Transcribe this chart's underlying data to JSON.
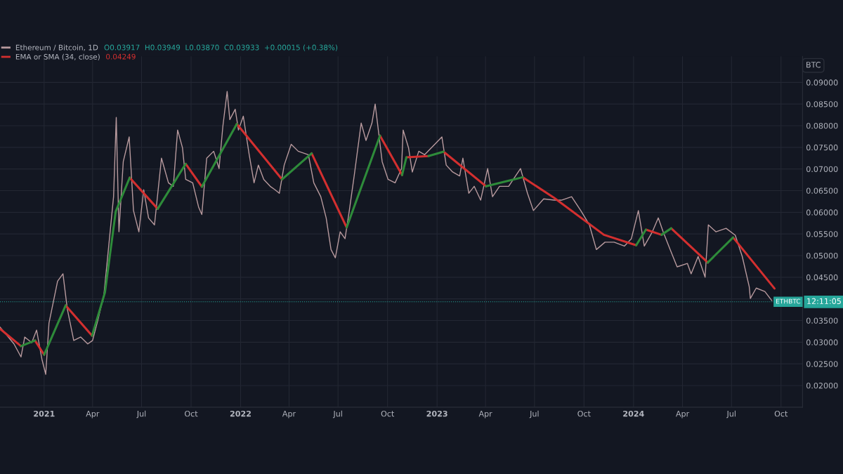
{
  "chart_data": {
    "type": "line",
    "title": null,
    "ylabel": "BTC",
    "xlim": [
      "2020-10-11",
      "2024-11-10"
    ],
    "xticks": [
      {
        "value": "2021-01-01",
        "label": "2021"
      },
      {
        "value": "2021-04-01",
        "label": "Apr"
      },
      {
        "value": "2021-07-01",
        "label": "Jul"
      },
      {
        "value": "2021-10-01",
        "label": "Oct"
      },
      {
        "value": "2022-01-01",
        "label": "2022"
      },
      {
        "value": "2022-04-01",
        "label": "Apr"
      },
      {
        "value": "2022-07-01",
        "label": "Jul"
      },
      {
        "value": "2022-10-01",
        "label": "Oct"
      },
      {
        "value": "2023-01-01",
        "label": "2023"
      },
      {
        "value": "2023-04-01",
        "label": "Apr"
      },
      {
        "value": "2023-07-01",
        "label": "Jul"
      },
      {
        "value": "2023-10-01",
        "label": "Oct"
      },
      {
        "value": "2024-01-01",
        "label": "2024"
      },
      {
        "value": "2024-04-01",
        "label": "Apr"
      },
      {
        "value": "2024-07-01",
        "label": "Jul"
      },
      {
        "value": "2024-10-01",
        "label": "Oct"
      }
    ],
    "ylim": [
      0.015,
      0.096
    ],
    "yticks": [
      {
        "value": 0.02,
        "label": "0.02000"
      },
      {
        "value": 0.025,
        "label": "0.02500"
      },
      {
        "value": 0.03,
        "label": "0.03000"
      },
      {
        "value": 0.035,
        "label": "0.03500"
      },
      {
        "value": 0.04,
        "label": null
      },
      {
        "value": 0.045,
        "label": "0.04500"
      },
      {
        "value": 0.05,
        "label": "0.05000"
      },
      {
        "value": 0.055,
        "label": "0.05500"
      },
      {
        "value": 0.06,
        "label": "0.06000"
      },
      {
        "value": 0.065,
        "label": "0.06500"
      },
      {
        "value": 0.07,
        "label": "0.07000"
      },
      {
        "value": 0.075,
        "label": "0.07500"
      },
      {
        "value": 0.08,
        "label": "0.08000"
      },
      {
        "value": 0.085,
        "label": "0.08500"
      },
      {
        "value": 0.09,
        "label": "0.09000"
      }
    ],
    "grid": true,
    "legend": "top left",
    "marker": "none",
    "line_style": "solid",
    "series": [
      {
        "name": "Ethereum / Bitcoin, 1D",
        "color": "#b89a9e",
        "x": [
          "2020-10-11",
          "2020-11-06",
          "2020-11-19",
          "2020-11-26",
          "2020-12-09",
          "2020-12-18",
          "2020-12-28",
          "2021-01-04",
          "2021-01-10",
          "2021-01-26",
          "2021-02-05",
          "2021-02-13",
          "2021-02-25",
          "2021-03-10",
          "2021-03-23",
          "2021-04-01",
          "2021-04-11",
          "2021-04-22",
          "2021-05-01",
          "2021-05-10",
          "2021-05-15",
          "2021-05-20",
          "2021-05-28",
          "2021-06-08",
          "2021-06-16",
          "2021-06-26",
          "2021-07-05",
          "2021-07-14",
          "2021-07-25",
          "2021-08-07",
          "2021-08-20",
          "2021-08-29",
          "2021-09-06",
          "2021-09-15",
          "2021-09-21",
          "2021-10-04",
          "2021-10-15",
          "2021-10-21",
          "2021-10-30",
          "2021-11-12",
          "2021-11-22",
          "2021-11-29",
          "2021-12-07",
          "2021-12-12",
          "2021-12-22",
          "2021-12-28",
          "2022-01-06",
          "2022-01-17",
          "2022-01-26",
          "2022-02-03",
          "2022-02-13",
          "2022-02-25",
          "2022-03-06",
          "2022-03-14",
          "2022-03-23",
          "2022-04-05",
          "2022-04-18",
          "2022-05-07",
          "2022-05-17",
          "2022-05-30",
          "2022-06-09",
          "2022-06-18",
          "2022-06-26",
          "2022-07-05",
          "2022-07-14",
          "2022-07-22",
          "2022-07-31",
          "2022-08-13",
          "2022-08-22",
          "2022-09-02",
          "2022-09-08",
          "2022-09-21",
          "2022-10-02",
          "2022-10-15",
          "2022-10-27",
          "2022-10-30",
          "2022-11-09",
          "2022-11-16",
          "2022-11-28",
          "2022-12-09",
          "2023-01-10",
          "2023-01-18",
          "2023-01-30",
          "2023-02-12",
          "2023-02-18",
          "2023-03-01",
          "2023-03-11",
          "2023-03-23",
          "2023-04-05",
          "2023-04-14",
          "2023-04-27",
          "2023-05-14",
          "2023-06-05",
          "2023-06-18",
          "2023-06-29",
          "2023-07-18",
          "2023-08-07",
          "2023-08-20",
          "2023-09-08",
          "2023-09-25",
          "2023-10-11",
          "2023-10-24",
          "2023-11-09",
          "2023-11-26",
          "2023-12-15",
          "2023-12-28",
          "2024-01-10",
          "2024-01-21",
          "2024-02-05",
          "2024-02-16",
          "2024-02-25",
          "2024-03-09",
          "2024-03-22",
          "2024-04-10",
          "2024-04-17",
          "2024-04-30",
          "2024-05-13",
          "2024-05-19",
          "2024-06-02",
          "2024-06-21",
          "2024-07-08",
          "2024-07-21",
          "2024-08-03",
          "2024-08-05",
          "2024-08-16",
          "2024-09-01",
          "2024-09-14"
        ],
        "values": [
          0.0335,
          0.0296,
          0.0266,
          0.0312,
          0.0299,
          0.0328,
          0.026,
          0.0226,
          0.0344,
          0.0441,
          0.0458,
          0.0377,
          0.0304,
          0.0312,
          0.0296,
          0.0304,
          0.0352,
          0.0409,
          0.0522,
          0.0636,
          0.0819,
          0.0555,
          0.0717,
          0.0774,
          0.0604,
          0.0555,
          0.0652,
          0.0587,
          0.0571,
          0.0725,
          0.0668,
          0.066,
          0.079,
          0.0749,
          0.0676,
          0.0668,
          0.0612,
          0.0595,
          0.0725,
          0.0741,
          0.0701,
          0.0798,
          0.0879,
          0.0814,
          0.0838,
          0.079,
          0.0822,
          0.0733,
          0.0668,
          0.0709,
          0.0676,
          0.066,
          0.0652,
          0.0644,
          0.0709,
          0.0757,
          0.0741,
          0.0733,
          0.0668,
          0.0636,
          0.0587,
          0.0514,
          0.0495,
          0.0555,
          0.0539,
          0.0604,
          0.0684,
          0.0806,
          0.0766,
          0.0806,
          0.085,
          0.0717,
          0.0676,
          0.0668,
          0.0701,
          0.079,
          0.0749,
          0.0693,
          0.0741,
          0.0733,
          0.0774,
          0.0709,
          0.0693,
          0.0684,
          0.0725,
          0.0644,
          0.066,
          0.0628,
          0.0701,
          0.0636,
          0.066,
          0.066,
          0.0701,
          0.0644,
          0.0604,
          0.0631,
          0.0628,
          0.0628,
          0.0636,
          0.0604,
          0.0571,
          0.0514,
          0.0531,
          0.0531,
          0.0522,
          0.0539,
          0.0604,
          0.0522,
          0.0555,
          0.0587,
          0.0555,
          0.0514,
          0.0474,
          0.0482,
          0.0458,
          0.0498,
          0.045,
          0.0571,
          0.0555,
          0.0563,
          0.0547,
          0.0498,
          0.0428,
          0.0401,
          0.0425,
          0.0417,
          0.0396
        ]
      },
      {
        "name": "EMA or SMA (34, close)",
        "color": "#d32f2f",
        "x": [
          "2020-10-11",
          "2020-11-19"
        ],
        "values": [
          0.0331,
          0.0291
        ]
      },
      {
        "color": "#d32f2f",
        "x": [
          "2020-12-15",
          "2021-01-01"
        ],
        "values": [
          0.0304,
          0.0271
        ]
      },
      {
        "color": "#d32f2f",
        "x": [
          "2021-02-10",
          "2021-03-31"
        ],
        "values": [
          0.0385,
          0.0315
        ]
      },
      {
        "color": "#d32f2f",
        "x": [
          "2021-06-09",
          "2021-07-31"
        ],
        "values": [
          0.068,
          0.0608
        ]
      },
      {
        "color": "#d32f2f",
        "x": [
          "2021-09-21",
          "2021-10-21"
        ],
        "values": [
          0.0712,
          0.0659
        ]
      },
      {
        "color": "#d32f2f",
        "x": [
          "2021-12-25",
          "2022-03-19"
        ],
        "values": [
          0.0804,
          0.0676
        ]
      },
      {
        "color": "#d32f2f",
        "x": [
          "2022-05-13",
          "2022-07-17"
        ],
        "values": [
          0.0736,
          0.0565
        ]
      },
      {
        "color": "#d32f2f",
        "x": [
          "2022-09-17",
          "2022-10-28"
        ],
        "values": [
          0.0777,
          0.0686
        ]
      },
      {
        "color": "#d32f2f",
        "x": [
          "2022-11-05",
          "2022-12-16"
        ],
        "values": [
          0.0727,
          0.073
        ]
      },
      {
        "color": "#d32f2f",
        "x": [
          "2023-01-13",
          "2023-04-02"
        ],
        "values": [
          0.074,
          0.066
        ]
      },
      {
        "color": "#d32f2f",
        "x": [
          "2023-06-09",
          "2023-08-07",
          "2023-11-07",
          "2024-01-06"
        ],
        "values": [
          0.0681,
          0.0633,
          0.0548,
          0.0524
        ]
      },
      {
        "color": "#d32f2f",
        "x": [
          "2024-01-24",
          "2024-02-22"
        ],
        "values": [
          0.056,
          0.0548
        ]
      },
      {
        "color": "#d32f2f",
        "x": [
          "2024-03-11",
          "2024-05-18"
        ],
        "values": [
          0.0563,
          0.0484
        ]
      },
      {
        "color": "#d32f2f",
        "x": [
          "2024-07-04",
          "2024-09-19"
        ],
        "values": [
          0.0542,
          0.0424
        ]
      },
      {
        "color": "#2e8b3a",
        "x": [
          "2020-11-19",
          "2020-12-15"
        ],
        "values": [
          0.0291,
          0.0304
        ]
      },
      {
        "color": "#2e8b3a",
        "x": [
          "2021-01-01",
          "2021-02-10"
        ],
        "values": [
          0.0271,
          0.0385
        ]
      },
      {
        "color": "#2e8b3a",
        "x": [
          "2021-03-31",
          "2021-04-24",
          "2021-05-14",
          "2021-06-09"
        ],
        "values": [
          0.0315,
          0.0415,
          0.0602,
          0.068
        ]
      },
      {
        "color": "#2e8b3a",
        "x": [
          "2021-07-31",
          "2021-09-21"
        ],
        "values": [
          0.0608,
          0.0712
        ]
      },
      {
        "color": "#2e8b3a",
        "x": [
          "2021-10-21",
          "2021-12-25"
        ],
        "values": [
          0.0659,
          0.0804
        ]
      },
      {
        "color": "#2e8b3a",
        "x": [
          "2022-03-19",
          "2022-05-13"
        ],
        "values": [
          0.0676,
          0.0736
        ]
      },
      {
        "color": "#2e8b3a",
        "x": [
          "2022-07-17",
          "2022-09-17"
        ],
        "values": [
          0.0565,
          0.0777
        ]
      },
      {
        "color": "#2e8b3a",
        "x": [
          "2022-10-28",
          "2022-11-05"
        ],
        "values": [
          0.0686,
          0.0727
        ]
      },
      {
        "color": "#2e8b3a",
        "x": [
          "2022-12-16",
          "2023-01-13"
        ],
        "values": [
          0.073,
          0.074
        ]
      },
      {
        "color": "#2e8b3a",
        "x": [
          "2023-04-02",
          "2023-06-09"
        ],
        "values": [
          0.066,
          0.0681
        ]
      },
      {
        "color": "#2e8b3a",
        "x": [
          "2024-01-06",
          "2024-01-24"
        ],
        "values": [
          0.0524,
          0.056
        ]
      },
      {
        "color": "#2e8b3a",
        "x": [
          "2024-02-22",
          "2024-03-11"
        ],
        "values": [
          0.0548,
          0.0563
        ]
      },
      {
        "color": "#2e8b3a",
        "x": [
          "2024-05-18",
          "2024-07-04"
        ],
        "values": [
          0.0484,
          0.0542
        ]
      }
    ],
    "ref_lines": [
      {
        "axis": "y",
        "value": 0.03933,
        "label": "ETHBTC",
        "color": "#26a69a",
        "line_style": "dotted"
      }
    ],
    "annotations": [
      "O0.03917  H0.03949  L0.03870  C0.03933  +0.00015 (+0.38%)",
      "0.04249",
      "12:11:05"
    ]
  }
}
